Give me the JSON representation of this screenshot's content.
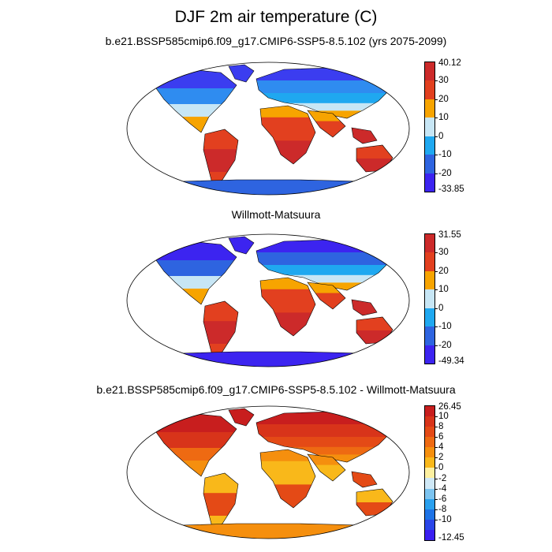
{
  "title": "DJF 2m air temperature (C)",
  "panels": [
    {
      "title": "b.e21.BSSP585cmip6.f09_g17.CMIP6-SSP5-8.5.102 (yrs 2075-2099)",
      "colorbar": {
        "max_label": "40.12",
        "min_label": "-33.85",
        "ticks": [
          "30",
          "20",
          "10",
          "0",
          "-10",
          "-20"
        ],
        "colors": [
          "#cc2a2a",
          "#e2401f",
          "#f7a400",
          "#c7e6f5",
          "#1fa8f0",
          "#2e64e0",
          "#3c24f0"
        ]
      },
      "map_colors": {
        "polar": "#3b3df0",
        "cold": "#2f8cf0",
        "cool": "#1fa8f0",
        "mild": "#c7e6f5",
        "warm": "#f7a400",
        "hot": "#e2401f",
        "veryhot": "#cc2a2a",
        "antarctica": "#2e64e0"
      }
    },
    {
      "title": "Willmott-Matsuura",
      "colorbar": {
        "max_label": "31.55",
        "min_label": "-49.34",
        "ticks": [
          "30",
          "20",
          "10",
          "0",
          "-10",
          "-20"
        ],
        "colors": [
          "#cc2a2a",
          "#e2401f",
          "#f7a400",
          "#c7e6f5",
          "#1fa8f0",
          "#2e64e0",
          "#3c24f0"
        ]
      },
      "map_colors": {
        "polar": "#3c24f0",
        "cold": "#2e64e0",
        "cool": "#1fa8f0",
        "mild": "#c7e6f5",
        "warm": "#f7a400",
        "hot": "#e2401f",
        "veryhot": "#cc2a2a",
        "antarctica": "#3c24f0"
      }
    },
    {
      "title": "b.e21.BSSP585cmip6.f09_g17.CMIP6-SSP5-8.5.102 - Willmott-Matsuura",
      "colorbar": {
        "max_label": "26.45",
        "min_label": "-12.45",
        "ticks": [
          "10",
          "8",
          "6",
          "4",
          "2",
          "0",
          "-2",
          "-4",
          "-6",
          "-8",
          "-10"
        ],
        "colors": [
          "#c81e1e",
          "#d8341a",
          "#e44a16",
          "#ee6a12",
          "#f58f0e",
          "#f9b81a",
          "#fdf0a0",
          "#cfe8f6",
          "#7cc4f0",
          "#2aa0ee",
          "#1e73e6",
          "#2a46e8",
          "#3a1ef0"
        ]
      },
      "map_colors": {
        "polar": "#c81e1e",
        "cold": "#d8341a",
        "cool": "#e44a16",
        "mild": "#ee6a12",
        "warm": "#f58f0e",
        "hot": "#f9b81a",
        "veryhot": "#e44a16",
        "antarctica": "#f58f0e"
      }
    }
  ]
}
